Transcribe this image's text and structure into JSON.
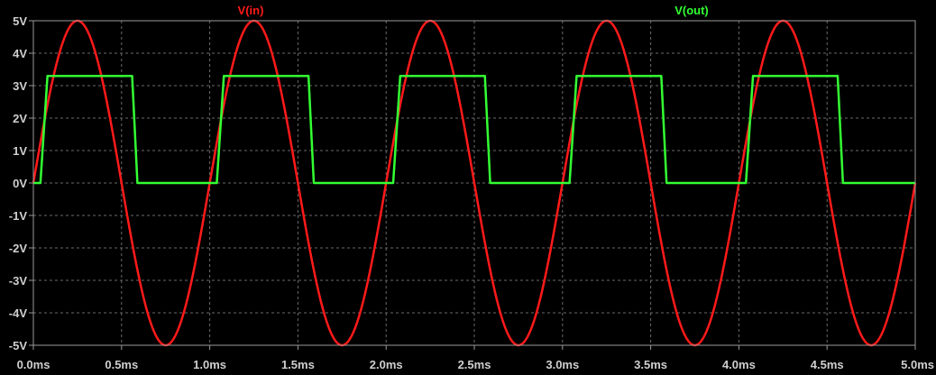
{
  "chart_data": {
    "type": "line",
    "background": "#000000",
    "grid": true,
    "grid_color": "#6a6a6a",
    "frame_color": "#9a9a9a",
    "xlim": [
      0,
      5
    ],
    "ylim": [
      -5,
      5
    ],
    "x_ticks": [
      0,
      0.5,
      1,
      1.5,
      2,
      2.5,
      3,
      3.5,
      4,
      4.5,
      5
    ],
    "x_tick_labels": [
      "0.0ms",
      "0.5ms",
      "1.0ms",
      "1.5ms",
      "2.0ms",
      "2.5ms",
      "3.0ms",
      "3.5ms",
      "4.0ms",
      "4.5ms",
      "5.0ms"
    ],
    "y_ticks": [
      5,
      4,
      3,
      2,
      1,
      0,
      -1,
      -2,
      -3,
      -4,
      -5
    ],
    "y_tick_labels": [
      "5V",
      "4V",
      "3V",
      "2V",
      "1V",
      "0V",
      "-1V",
      "-2V",
      "-3V",
      "-4V",
      "-5V"
    ],
    "series": [
      {
        "name": "V(in)",
        "color": "#ff1a1a",
        "kind": "sine",
        "amplitude": 5,
        "period_ms": 1
      },
      {
        "name": "V(out)",
        "color": "#33ff33",
        "kind": "square",
        "high": 3.3,
        "low": 0,
        "period_ms": 1,
        "rise_start_ms": 0.04,
        "rise_end_ms": 0.08,
        "fall_start_ms": 0.56,
        "fall_end_ms": 0.59
      }
    ],
    "legend": [
      "V(in)",
      "V(out)"
    ]
  }
}
